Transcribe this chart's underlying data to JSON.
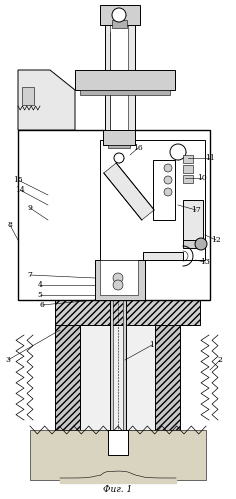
{
  "caption": "Фиг. 1",
  "bg_color": "#ffffff",
  "fig_width": 2.36,
  "fig_height": 4.99,
  "dpi": 100,
  "gray_light": "#e8e8e8",
  "gray_med": "#d0d0d0",
  "gray_dark": "#b0b0b0",
  "gray_hatch": "#c8c8c8",
  "soil_color": "#d8d4c0"
}
